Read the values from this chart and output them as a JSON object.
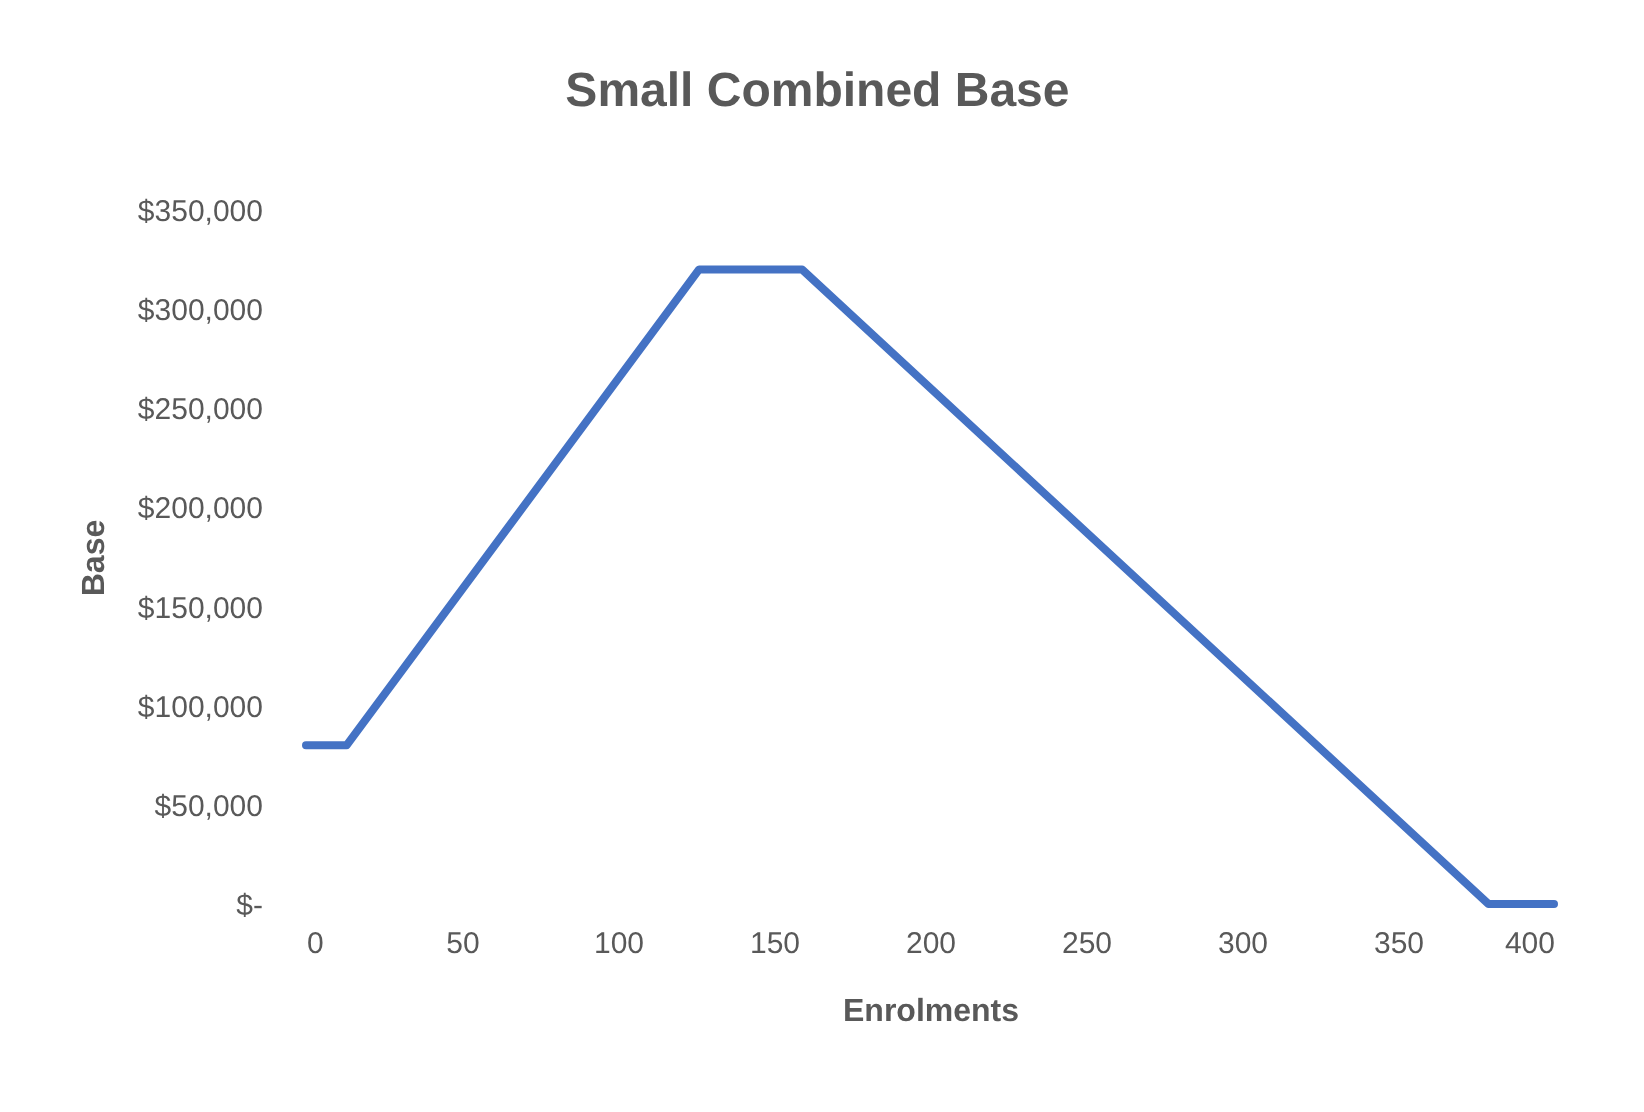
{
  "chart_data": {
    "type": "line",
    "title": "Small Combined Base",
    "xlabel": "Enrolments",
    "ylabel": "Base",
    "x": [
      0,
      13,
      126,
      159,
      379,
      400
    ],
    "series": [
      {
        "color": "#4472c4",
        "values": [
          80000,
          80000,
          320000,
          320000,
          0,
          0
        ]
      }
    ],
    "xlim": [
      0,
      400
    ],
    "xticks": [
      0,
      50,
      100,
      150,
      200,
      250,
      300,
      350,
      400
    ],
    "ylim": [
      0,
      350000
    ],
    "yticks": [
      {
        "value": 0,
        "label": "$-"
      },
      {
        "value": 50000,
        "label": "$50,000"
      },
      {
        "value": 100000,
        "label": "$100,000"
      },
      {
        "value": 150000,
        "label": "$150,000"
      },
      {
        "value": 200000,
        "label": "$200,000"
      },
      {
        "value": 250000,
        "label": "$250,000"
      },
      {
        "value": 300000,
        "label": "$300,000"
      },
      {
        "value": 350000,
        "label": "$350,000"
      }
    ],
    "grid": false,
    "marker": "none",
    "line_style": "solid"
  }
}
